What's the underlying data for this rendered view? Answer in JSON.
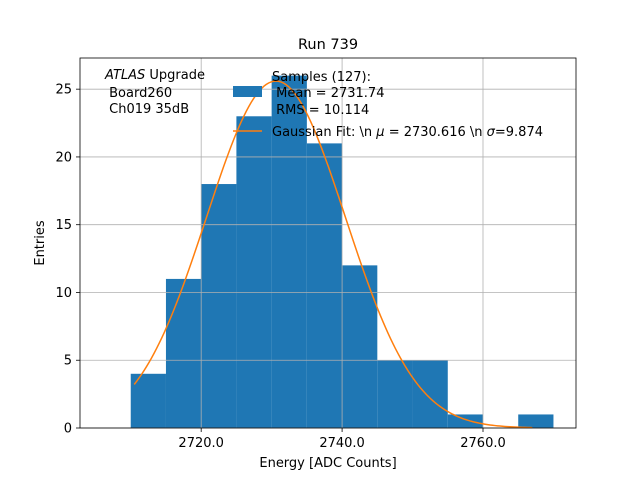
{
  "colors": {
    "bar": "#1f77b4",
    "fit": "#ff7f0e",
    "grid": "#b0b0b0",
    "axis": "#000000"
  },
  "chart_data": {
    "type": "bar",
    "title": "Run 739",
    "xlabel": "Energy [ADC Counts]",
    "ylabel": "Entries",
    "xlim": [
      2702.8,
      2773.2
    ],
    "ylim": [
      0,
      27.3
    ],
    "grid": true,
    "x_ticks": [
      2720.0,
      2740.0,
      2760.0
    ],
    "x_tick_labels": [
      "2720.0",
      "2740.0",
      "2760.0"
    ],
    "y_ticks": [
      0,
      5,
      10,
      15,
      20,
      25
    ],
    "y_tick_labels": [
      "0",
      "5",
      "10",
      "15",
      "20",
      "25"
    ],
    "histogram": {
      "name": "Samples (127):",
      "bin_edges": [
        2710,
        2715,
        2720,
        2725,
        2730,
        2735,
        2740,
        2745,
        2750,
        2755,
        2760,
        2765,
        2770
      ],
      "counts": [
        4,
        11,
        18,
        23,
        26,
        21,
        12,
        5,
        5,
        1,
        0,
        1
      ]
    },
    "fit": {
      "name": "Gaussian Fit",
      "mu": 2730.616,
      "sigma": 9.874,
      "amplitude": 25.6,
      "x_range": [
        2710.5,
        2767
      ]
    },
    "annotation": {
      "italic": "ATLAS",
      "line1_rest": " Upgrade",
      "line2": " Board260",
      "line3": " Ch019 35dB"
    },
    "legend": {
      "position": "top-right",
      "hist_line1": "Samples (127):",
      "hist_line2": " Mean = 2731.74",
      "hist_line3": " RMS = 10.114",
      "fit_label_a": "Gaussian Fit: \\n ",
      "fit_mu_symbol": "μ",
      "fit_label_b": " = 2730.616 \\n ",
      "fit_sigma_symbol": "σ",
      "fit_label_c": "=9.874"
    }
  }
}
